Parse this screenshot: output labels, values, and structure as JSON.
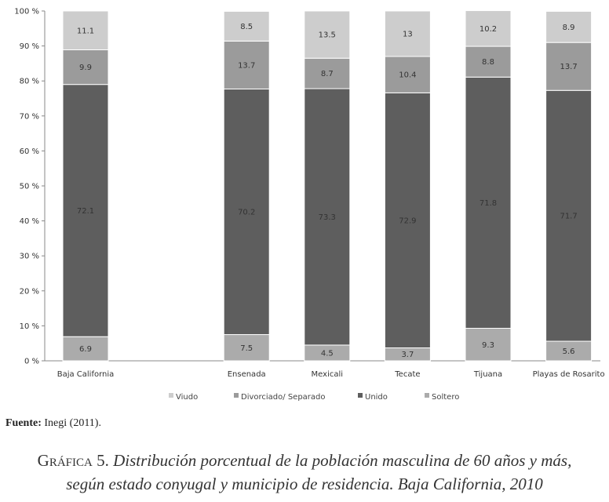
{
  "chart_data": {
    "type": "bar",
    "stacked": true,
    "percent_stacked": true,
    "categories": [
      "Baja California",
      "",
      "Ensenada",
      "Mexicali",
      "Tecate",
      "Tijuana",
      "Playas de Rosarito"
    ],
    "series": [
      {
        "name": "Soltero",
        "color": "#ababab",
        "values": [
          6.9,
          null,
          7.5,
          4.5,
          3.7,
          9.3,
          5.6
        ]
      },
      {
        "name": "Unido",
        "color": "#5e5e5e",
        "values": [
          72.1,
          null,
          70.2,
          73.3,
          72.9,
          71.8,
          71.7
        ]
      },
      {
        "name": "Divorciado/ Separado",
        "color": "#9b9b9b",
        "values": [
          9.9,
          null,
          13.7,
          8.7,
          10.4,
          8.8,
          13.7
        ]
      },
      {
        "name": "Viudo",
        "color": "#cdcdcd",
        "values": [
          11.1,
          null,
          8.5,
          13.5,
          13,
          10.2,
          8.9
        ]
      }
    ],
    "legend_order": [
      "Viudo",
      "Divorciado/ Separado",
      "Unido",
      "Soltero"
    ],
    "ylim": [
      0,
      100
    ],
    "yticks": [
      "0 %",
      "10 %",
      "20 %",
      "30 %",
      "40 %",
      "50 %",
      "60 %",
      "70 %",
      "80 %",
      "90 %",
      "100 %"
    ],
    "grid": false,
    "legend_position": "bottom"
  },
  "source": {
    "label": "Fuente:",
    "text": "Inegi (2011)."
  },
  "caption": {
    "lead": "Gráfica 5.",
    "line1": "Distribución porcentual de la población masculina de 60 años y más,",
    "line2": "según estado conyugal y municipio de residencia. Baja California, 2010"
  }
}
